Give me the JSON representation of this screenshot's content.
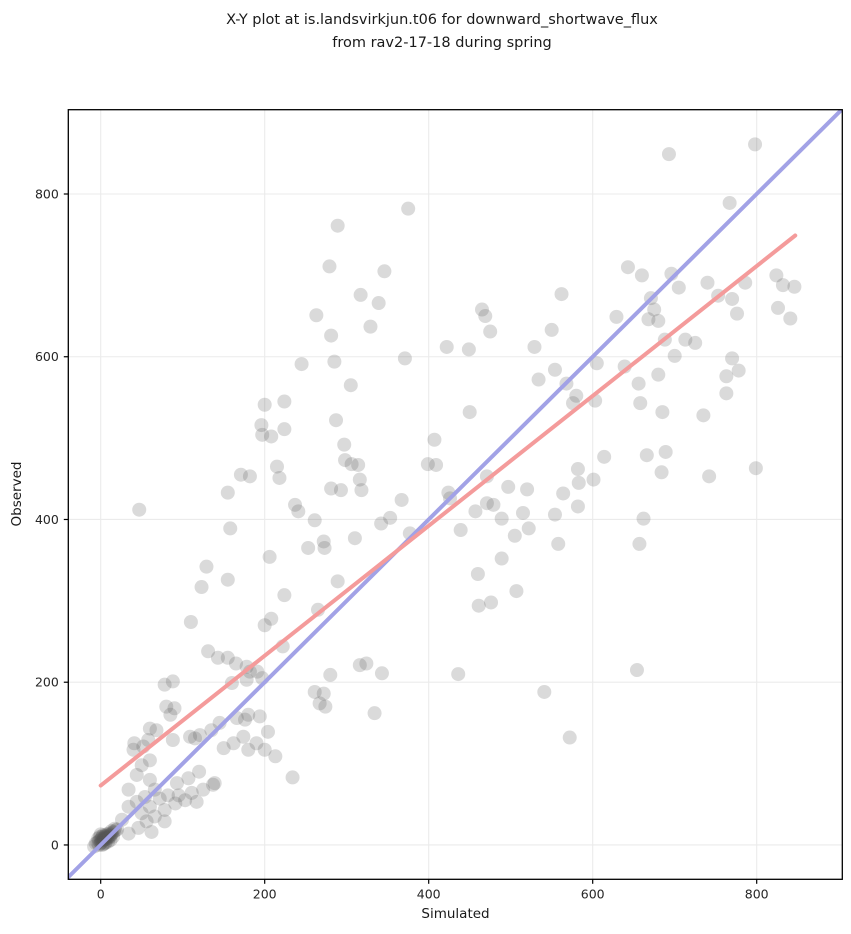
{
  "chart_data": {
    "type": "scatter",
    "title_line1": "X-Y plot at is.landsvirkjun.t06 for downward_shortwave_flux",
    "title_line2": "from rav2-17-18 during spring",
    "xlabel": "Simulated",
    "ylabel": "Observed",
    "x_ticks": [
      0,
      200,
      400,
      600,
      800
    ],
    "y_ticks": [
      0,
      200,
      400,
      600,
      800
    ],
    "x_range": [
      -39.5,
      904.4
    ],
    "y_range": [
      -42.2,
      903.6
    ],
    "grid": true,
    "legend": "none",
    "colors": {
      "background": "#ffffff",
      "gridline": "#ebebeb",
      "spine": "#000000",
      "identity_line": "#a2a2e6",
      "fit_line": "#f49b9b",
      "point": "#555555"
    },
    "lines": [
      {
        "name": "one-to-one",
        "x1": -39.5,
        "y1": -39.5,
        "x2": 903.6,
        "y2": 903.6
      },
      {
        "name": "linear-fit",
        "x1": 0,
        "y1": 73,
        "x2": 847,
        "y2": 749
      }
    ],
    "point_style": {
      "radius": 7,
      "opacity": 0.22
    },
    "points": [
      [
        693,
        849
      ],
      [
        798,
        861
      ],
      [
        767,
        789
      ],
      [
        375,
        782
      ],
      [
        289,
        761
      ],
      [
        279,
        711
      ],
      [
        346,
        705
      ],
      [
        317,
        676
      ],
      [
        339,
        666
      ],
      [
        263,
        651
      ],
      [
        329,
        637
      ],
      [
        281,
        626
      ],
      [
        422,
        612
      ],
      [
        371,
        598
      ],
      [
        245,
        591
      ],
      [
        285,
        594
      ],
      [
        305,
        565
      ],
      [
        200,
        541
      ],
      [
        224,
        545
      ],
      [
        287,
        522
      ],
      [
        196,
        516
      ],
      [
        197,
        504
      ],
      [
        208,
        502
      ],
      [
        224,
        511
      ],
      [
        297,
        492
      ],
      [
        298,
        473
      ],
      [
        306,
        468
      ],
      [
        314,
        467
      ],
      [
        407,
        498
      ],
      [
        399,
        468
      ],
      [
        215,
        465
      ],
      [
        171,
        455
      ],
      [
        182,
        453
      ],
      [
        218,
        451
      ],
      [
        155,
        433
      ],
      [
        281,
        438
      ],
      [
        293,
        436
      ],
      [
        316,
        449
      ],
      [
        318,
        436
      ],
      [
        409,
        467
      ],
      [
        424,
        433
      ],
      [
        426,
        426
      ],
      [
        367,
        424
      ],
      [
        353,
        402
      ],
      [
        342,
        395
      ],
      [
        377,
        383
      ],
      [
        643,
        710
      ],
      [
        660,
        700
      ],
      [
        696,
        702
      ],
      [
        705,
        685
      ],
      [
        740,
        691
      ],
      [
        753,
        675
      ],
      [
        770,
        671
      ],
      [
        786,
        691
      ],
      [
        824,
        700
      ],
      [
        832,
        688
      ],
      [
        846,
        686
      ],
      [
        671,
        672
      ],
      [
        675,
        658
      ],
      [
        562,
        677
      ],
      [
        465,
        658
      ],
      [
        469,
        650
      ],
      [
        475,
        631
      ],
      [
        550,
        633
      ],
      [
        668,
        646
      ],
      [
        680,
        644
      ],
      [
        629,
        649
      ],
      [
        826,
        660
      ],
      [
        841,
        647
      ],
      [
        776,
        653
      ],
      [
        529,
        612
      ],
      [
        449,
        609
      ],
      [
        688,
        621
      ],
      [
        713,
        621
      ],
      [
        725,
        617
      ],
      [
        700,
        601
      ],
      [
        770,
        598
      ],
      [
        778,
        583
      ],
      [
        763,
        576
      ],
      [
        605,
        592
      ],
      [
        639,
        588
      ],
      [
        656,
        567
      ],
      [
        534,
        572
      ],
      [
        554,
        584
      ],
      [
        580,
        552
      ],
      [
        576,
        543
      ],
      [
        603,
        546
      ],
      [
        568,
        567
      ],
      [
        685,
        532
      ],
      [
        735,
        528
      ],
      [
        450,
        532
      ],
      [
        763,
        555
      ],
      [
        658,
        543
      ],
      [
        680,
        578
      ],
      [
        614,
        477
      ],
      [
        666,
        479
      ],
      [
        684,
        458
      ],
      [
        742,
        453
      ],
      [
        799,
        463
      ],
      [
        582,
        462
      ],
      [
        583,
        445
      ],
      [
        497,
        440
      ],
      [
        520,
        437
      ],
      [
        564,
        432
      ],
      [
        601,
        449
      ],
      [
        689,
        483
      ],
      [
        471,
        453
      ],
      [
        457,
        410
      ],
      [
        471,
        420
      ],
      [
        479,
        418
      ],
      [
        489,
        401
      ],
      [
        515,
        408
      ],
      [
        554,
        406
      ],
      [
        582,
        416
      ],
      [
        662,
        401
      ],
      [
        439,
        387
      ],
      [
        505,
        380
      ],
      [
        522,
        389
      ],
      [
        558,
        370
      ],
      [
        657,
        370
      ],
      [
        489,
        352
      ],
      [
        460,
        333
      ],
      [
        507,
        312
      ],
      [
        461,
        294
      ],
      [
        476,
        298
      ],
      [
        654,
        215
      ],
      [
        436,
        210
      ],
      [
        541,
        188
      ],
      [
        572,
        132
      ],
      [
        47,
        412
      ],
      [
        158,
        389
      ],
      [
        155,
        326
      ],
      [
        129,
        342
      ],
      [
        123,
        317
      ],
      [
        110,
        274
      ],
      [
        206,
        354
      ],
      [
        200,
        270
      ],
      [
        208,
        278
      ],
      [
        224,
        307
      ],
      [
        237,
        418
      ],
      [
        241,
        410
      ],
      [
        261,
        399
      ],
      [
        272,
        373
      ],
      [
        273,
        365
      ],
      [
        253,
        365
      ],
      [
        310,
        377
      ],
      [
        289,
        324
      ],
      [
        265,
        289
      ],
      [
        222,
        244
      ],
      [
        131,
        238
      ],
      [
        143,
        230
      ],
      [
        155,
        230
      ],
      [
        165,
        223
      ],
      [
        178,
        219
      ],
      [
        182,
        213
      ],
      [
        191,
        213
      ],
      [
        197,
        205
      ],
      [
        88,
        201
      ],
      [
        78,
        197
      ],
      [
        90,
        168
      ],
      [
        85,
        160
      ],
      [
        80,
        170
      ],
      [
        68,
        141
      ],
      [
        60,
        143
      ],
      [
        41,
        125
      ],
      [
        52,
        121
      ],
      [
        58,
        129
      ],
      [
        40,
        117
      ],
      [
        50,
        98
      ],
      [
        60,
        104
      ],
      [
        88,
        129
      ],
      [
        109,
        133
      ],
      [
        115,
        131
      ],
      [
        121,
        135
      ],
      [
        135,
        141
      ],
      [
        145,
        150
      ],
      [
        150,
        119
      ],
      [
        162,
        125
      ],
      [
        174,
        133
      ],
      [
        180,
        117
      ],
      [
        190,
        125
      ],
      [
        200,
        117
      ],
      [
        166,
        156
      ],
      [
        180,
        160
      ],
      [
        194,
        158
      ],
      [
        160,
        199
      ],
      [
        178,
        203
      ],
      [
        176,
        154
      ],
      [
        204,
        139
      ],
      [
        213,
        109
      ],
      [
        234,
        83
      ],
      [
        334,
        162
      ],
      [
        272,
        186
      ],
      [
        267,
        174
      ],
      [
        274,
        170
      ],
      [
        261,
        188
      ],
      [
        280,
        209
      ],
      [
        316,
        221
      ],
      [
        324,
        223
      ],
      [
        343,
        211
      ],
      [
        26,
        31
      ],
      [
        34,
        47
      ],
      [
        34,
        68
      ],
      [
        44,
        53
      ],
      [
        50,
        39
      ],
      [
        54,
        59
      ],
      [
        60,
        47
      ],
      [
        66,
        68
      ],
      [
        72,
        57
      ],
      [
        78,
        43
      ],
      [
        82,
        61
      ],
      [
        91,
        51
      ],
      [
        95,
        61
      ],
      [
        103,
        55
      ],
      [
        111,
        64
      ],
      [
        117,
        53
      ],
      [
        125,
        68
      ],
      [
        137,
        74
      ],
      [
        34,
        14
      ],
      [
        46,
        21
      ],
      [
        56,
        29
      ],
      [
        66,
        35
      ],
      [
        78,
        29
      ],
      [
        62,
        16
      ],
      [
        44,
        86
      ],
      [
        60,
        80
      ],
      [
        93,
        76
      ],
      [
        107,
        82
      ],
      [
        139,
        76
      ],
      [
        120,
        90
      ],
      [
        -8,
        -2
      ],
      [
        -6,
        2
      ],
      [
        -4,
        3
      ],
      [
        -3,
        8
      ],
      [
        -2,
        5
      ],
      [
        -1,
        10
      ],
      [
        0,
        6
      ],
      [
        0,
        13
      ],
      [
        1,
        3
      ],
      [
        1,
        8
      ],
      [
        2,
        5
      ],
      [
        2,
        10
      ],
      [
        3,
        7
      ],
      [
        3,
        12
      ],
      [
        4,
        6
      ],
      [
        4,
        9
      ],
      [
        5,
        8
      ],
      [
        5,
        11
      ],
      [
        6,
        7
      ],
      [
        6,
        10
      ],
      [
        7,
        9
      ],
      [
        7,
        13
      ],
      [
        8,
        8
      ],
      [
        8,
        12
      ],
      [
        9,
        10
      ],
      [
        10,
        9
      ],
      [
        11,
        12
      ],
      [
        12,
        11
      ],
      [
        13,
        13
      ],
      [
        14,
        15
      ],
      [
        16,
        16
      ],
      [
        18,
        18
      ],
      [
        20,
        19
      ],
      [
        15,
        10
      ],
      [
        12,
        6
      ],
      [
        9,
        4
      ],
      [
        5,
        2
      ],
      [
        2,
        0
      ],
      [
        0,
        2
      ],
      [
        -2,
        0
      ],
      [
        10,
        14
      ],
      [
        13,
        17
      ],
      [
        17,
        20
      ],
      [
        6,
        3
      ],
      [
        3,
        1
      ]
    ]
  }
}
